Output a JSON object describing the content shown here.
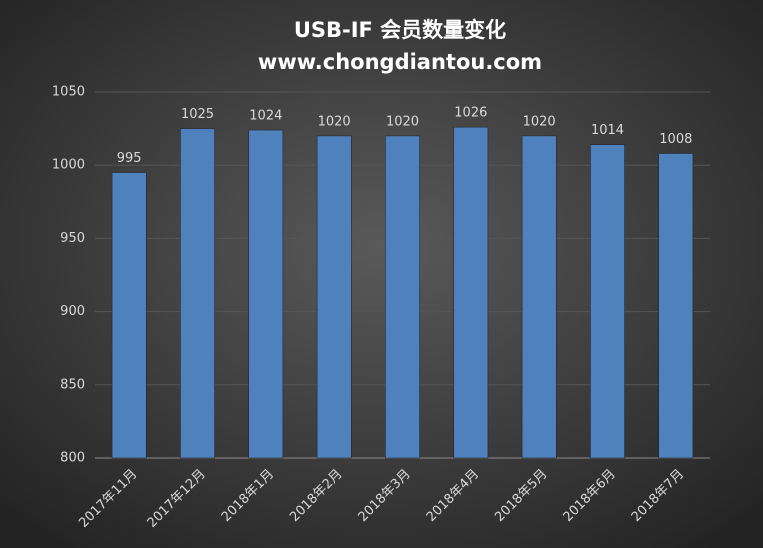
{
  "chart_data": {
    "type": "bar",
    "title": "USB-IF 会员数量变化",
    "subtitle": "www.chongdiantou.com",
    "categories": [
      "2017年11月",
      "2017年12月",
      "2018年1月",
      "2018年2月",
      "2018年3月",
      "2018年4月",
      "2018年5月",
      "2018年6月",
      "2018年7月"
    ],
    "values": [
      995,
      1025,
      1024,
      1020,
      1020,
      1026,
      1020,
      1014,
      1008
    ],
    "color": "#4f81bd",
    "ylim": [
      800,
      1050
    ],
    "yticks": [
      800,
      850,
      900,
      950,
      1000,
      1050
    ],
    "grid": true
  }
}
